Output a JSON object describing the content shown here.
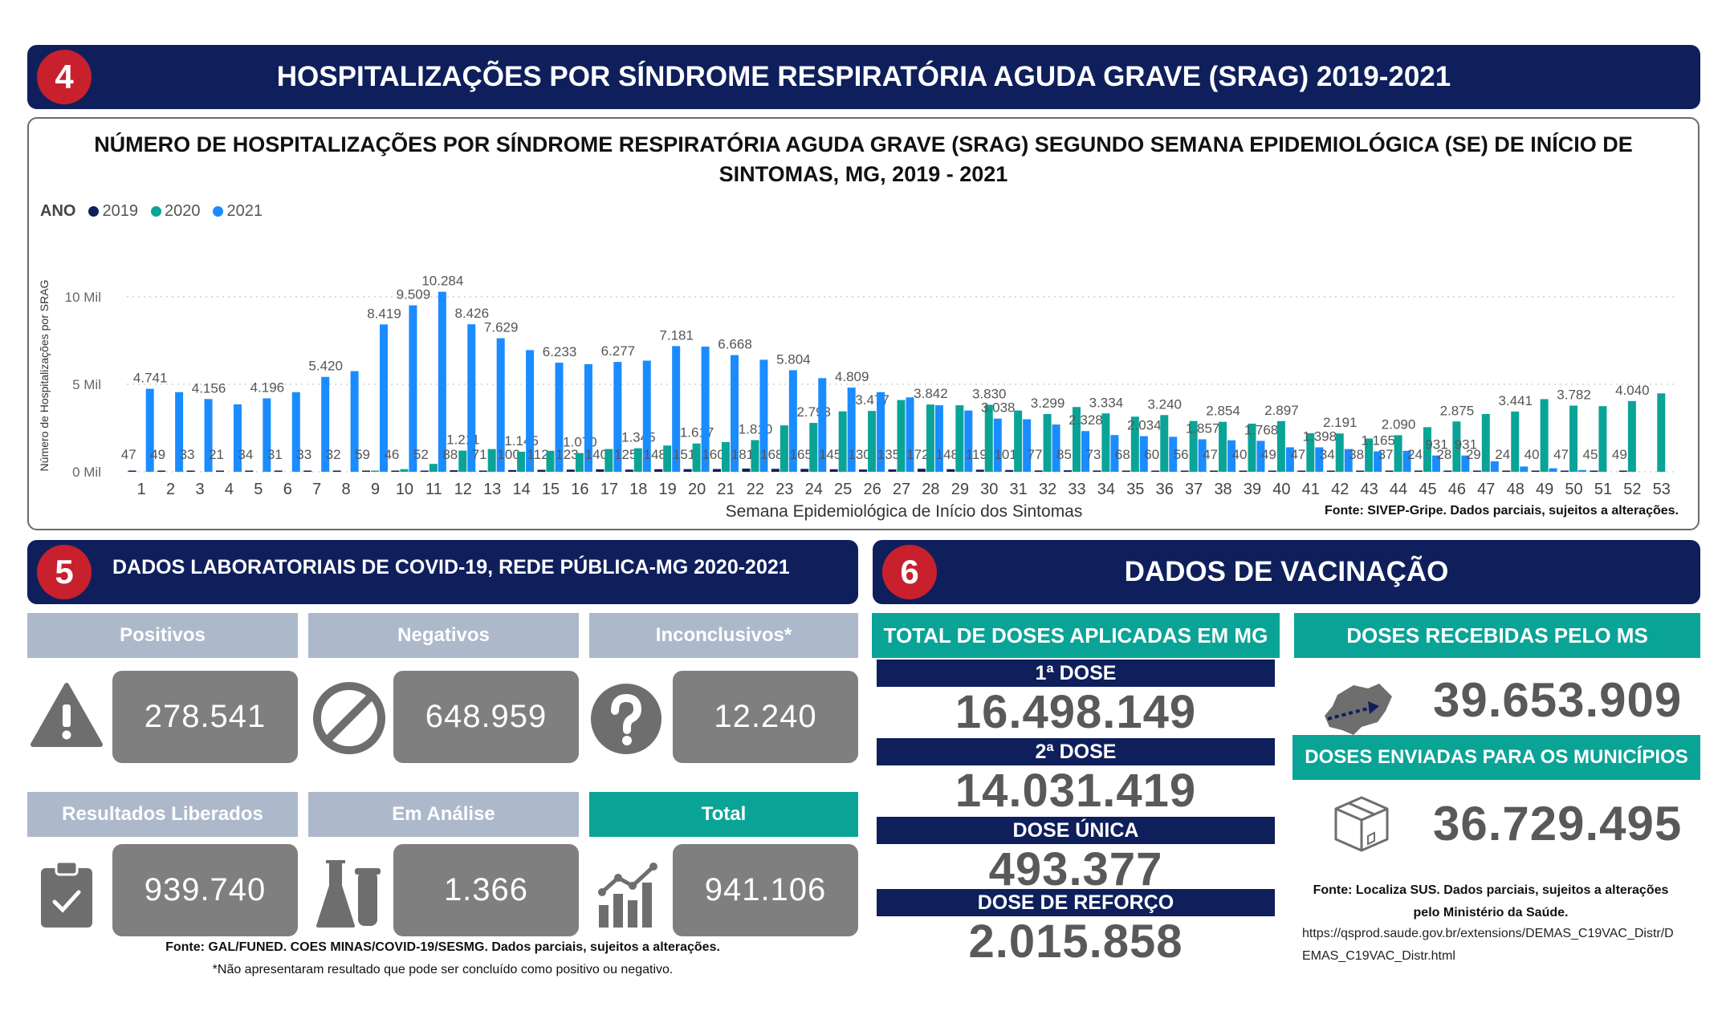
{
  "section4": {
    "number": "4",
    "title": "HOSPITALIZAÇÕES POR SÍNDROME RESPIRATÓRIA AGUDA GRAVE (SRAG) 2019-2021"
  },
  "chart": {
    "title": "NÚMERO DE HOSPITALIZAÇÕES POR SÍNDROME RESPIRATÓRIA AGUDA GRAVE (SRAG) SEGUNDO SEMANA EPIDEMIOLÓGICA (SE) DE INÍCIO DE SINTOMAS, MG, 2019 - 2021",
    "legend_title": "ANO",
    "source": "Fonte: SIVEP-Gripe. Dados parciais, sujeitos a alterações."
  },
  "chart_data": {
    "type": "bar",
    "title": "NÚMERO DE HOSPITALIZAÇÕES POR SÍNDROME RESPIRATÓRIA AGUDA GRAVE (SRAG) SEGUNDO SEMANA EPIDEMIOLÓGICA (SE) DE INÍCIO DE SINTOMAS, MG, 2019 - 2021",
    "xlabel": "Semana Epidemiológica de Início dos Sintomas",
    "ylabel": "Número de Hospitalizações por SRAG",
    "ylim": [
      0,
      11000
    ],
    "yticks": [
      0,
      5000,
      10000
    ],
    "ytick_labels": [
      "0 Mil",
      "5 Mil",
      "10 Mil"
    ],
    "grid": true,
    "legend_position": "top-left",
    "categories": [
      "1",
      "2",
      "3",
      "4",
      "5",
      "6",
      "7",
      "8",
      "9",
      "10",
      "11",
      "12",
      "13",
      "14",
      "15",
      "16",
      "17",
      "18",
      "19",
      "20",
      "21",
      "22",
      "23",
      "24",
      "25",
      "26",
      "27",
      "28",
      "29",
      "30",
      "31",
      "32",
      "33",
      "34",
      "35",
      "36",
      "37",
      "38",
      "39",
      "40",
      "41",
      "42",
      "43",
      "44",
      "45",
      "46",
      "47",
      "48",
      "49",
      "50",
      "51",
      "52",
      "53"
    ],
    "series": [
      {
        "name": "2019",
        "color": "#0f1f5c",
        "values": [
          47,
          49,
          33,
          21,
          34,
          31,
          33,
          32,
          59,
          46,
          52,
          88,
          71,
          100,
          112,
          123,
          140,
          125,
          148,
          151,
          160,
          181,
          168,
          165,
          145,
          130,
          135,
          172,
          148,
          119,
          101,
          77,
          85,
          73,
          68,
          60,
          56,
          47,
          40,
          49,
          47,
          34,
          38,
          37,
          24,
          28,
          29,
          24,
          40,
          47,
          45,
          49,
          null
        ],
        "labels": [
          "47",
          "49",
          "33",
          "21",
          "34",
          "31",
          "33",
          "32",
          "59",
          "46",
          "52",
          "88",
          "71",
          "100",
          "112",
          "123",
          "140",
          "125",
          "148",
          "151",
          "160",
          "181",
          "168",
          "165",
          "145",
          "130",
          "135",
          "172",
          "148",
          "119",
          "101",
          "77",
          "85",
          "73",
          "68",
          "60",
          "56",
          "47",
          "40",
          "49",
          "47",
          "34",
          "38",
          "37",
          "24",
          "28",
          "29",
          "24",
          "40",
          "47",
          "45",
          "49",
          ""
        ]
      },
      {
        "name": "2020",
        "color": "#0aa497",
        "values": [
          null,
          null,
          null,
          null,
          null,
          null,
          null,
          null,
          50,
          150,
          450,
          1211,
          1300,
          1145,
          1200,
          1070,
          1300,
          1345,
          1500,
          1617,
          1700,
          1810,
          2650,
          2793,
          3450,
          3477,
          4100,
          3842,
          3800,
          3830,
          3500,
          3299,
          3700,
          3334,
          3150,
          3240,
          2900,
          2854,
          2750,
          2897,
          2200,
          2191,
          1900,
          2090,
          2550,
          2875,
          3300,
          3441,
          4150,
          3782,
          3750,
          4040,
          4480
        ],
        "labels": [
          "",
          "",
          "",
          "",
          "",
          "",
          "",
          "",
          "",
          "",
          "",
          "1.211",
          "",
          "1.145",
          "",
          "1.070",
          "",
          "1.345",
          "",
          "1.617",
          "",
          "1.810",
          "",
          "2.793",
          "",
          "3.477",
          "",
          "3.842",
          "",
          "3.830",
          "",
          "3.299",
          "",
          "3.334",
          "",
          "3.240",
          "",
          "2.854",
          "",
          "2.897",
          "",
          "2.191",
          "",
          "2.090",
          "",
          "2.875",
          "",
          "3.441",
          "",
          "3.782",
          "",
          "4.040",
          ""
        ]
      },
      {
        "name": "2021",
        "color": "#1a8cff",
        "values": [
          4741,
          4550,
          4156,
          3850,
          4196,
          4550,
          5420,
          5750,
          8419,
          9509,
          10284,
          8426,
          7629,
          6950,
          6233,
          6150,
          6277,
          6350,
          7181,
          7150,
          6668,
          6400,
          5804,
          5350,
          4809,
          4550,
          4250,
          3800,
          3500,
          3038,
          3000,
          2700,
          2328,
          2100,
          2034,
          2000,
          1857,
          1800,
          1768,
          1400,
          1398,
          1300,
          1165,
          1200,
          931,
          931,
          600,
          300,
          200,
          100,
          null,
          null,
          null
        ],
        "labels": [
          "4.741",
          "",
          "4.156",
          "",
          "4.196",
          "",
          "5.420",
          "",
          "8.419",
          "9.509",
          "10.284",
          "8.426",
          "7.629",
          "",
          "6.233",
          "",
          "6.277",
          "",
          "7.181",
          "",
          "6.668",
          "",
          "5.804",
          "",
          "4.809",
          "",
          "",
          "",
          "",
          "3.038",
          "",
          "",
          "2.328",
          "",
          "2.034",
          "",
          "1.857",
          "",
          "1.768",
          "",
          "1.398",
          "",
          "1.165",
          "",
          "931",
          "931",
          "",
          "",
          "",
          "",
          "",
          "",
          ""
        ]
      }
    ]
  },
  "section5": {
    "number": "5",
    "title": "DADOS LABORATORIAIS DE COVID-19, REDE PÚBLICA-MG 2020-2021",
    "cards": [
      {
        "label": "Positivos",
        "value": "278.541",
        "icon": "warning-icon"
      },
      {
        "label": "Negativos",
        "value": "648.959",
        "icon": "prohibited-icon"
      },
      {
        "label": "Inconclusivos*",
        "value": "12.240",
        "icon": "question-icon"
      },
      {
        "label": "Resultados Liberados",
        "value": "939.740",
        "icon": "clipboard-check-icon"
      },
      {
        "label": "Em Análise",
        "value": "1.366",
        "icon": "lab-flask-icon"
      },
      {
        "label": "Total",
        "value": "941.106",
        "icon": "bar-chart-icon"
      }
    ],
    "source": "Fonte: GAL/FUNED. COES MINAS/COVID-19/SESMG. Dados parciais, sujeitos a alterações.",
    "footnote": "*Não apresentaram resultado que pode ser concluído como positivo ou negativo."
  },
  "section6": {
    "number": "6",
    "title": "DADOS DE VACINAÇÃO",
    "total_doses_title": "TOTAL DE DOSES APLICADAS EM MG",
    "doses": [
      {
        "label": "1ª DOSE",
        "value": "16.498.149"
      },
      {
        "label": "2ª DOSE",
        "value": "14.031.419"
      },
      {
        "label": "DOSE ÚNICA",
        "value": "493.377"
      },
      {
        "label": "DOSE DE REFORÇO",
        "value": "2.015.858"
      }
    ],
    "received_title": "DOSES RECEBIDAS PELO MS",
    "received_value": "39.653.909",
    "sent_title": "DOSES ENVIADAS PARA OS MUNICÍPIOS",
    "sent_value": "36.729.495",
    "source": "Fonte: Localiza SUS. Dados parciais, sujeitos a alterações pelo Ministério da Saúde.",
    "url_line1": "https://qsprod.saude.gov.br/extensions/DEMAS_C19VAC_Distr/D",
    "url_line2": "EMAS_C19VAC_Distr.html",
    "accent_colors": {
      "navy": "#0f1f5c",
      "teal": "#0aa497",
      "red": "#c8202d"
    }
  }
}
